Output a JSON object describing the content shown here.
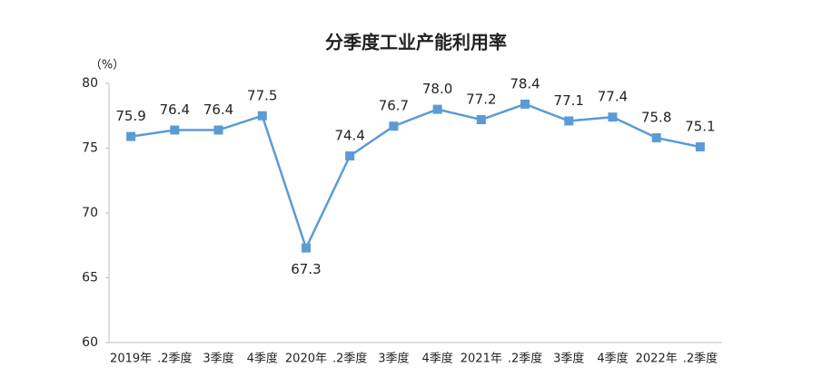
{
  "chart_data": {
    "type": "line",
    "title": "分季度工业产能利用率",
    "y_unit": "（%）",
    "categories": [
      "2019年",
      ".2季度",
      "3季度",
      "4季度",
      "2020年",
      ".2季度",
      "3季度",
      "4季度",
      "2021年",
      ".2季度",
      "3季度",
      "4季度",
      "2022年",
      ".2季度"
    ],
    "series": [
      {
        "name": "工业产能利用率",
        "color": "#5b9bd5",
        "values": [
          75.9,
          76.4,
          76.4,
          77.5,
          67.3,
          74.4,
          76.7,
          78.0,
          77.2,
          78.4,
          77.1,
          77.4,
          75.8,
          75.1
        ],
        "value_labels": [
          "75.9",
          "76.4",
          "76.4",
          "77.5",
          "67.3",
          "74.4",
          "76.7",
          "78.0",
          "77.2",
          "78.4",
          "77.1",
          "77.4",
          "75.8",
          "75.1"
        ]
      }
    ],
    "ylim": [
      60,
      80
    ],
    "yticks": [
      60,
      65,
      70,
      75,
      80
    ],
    "grid": false,
    "legend": false
  }
}
